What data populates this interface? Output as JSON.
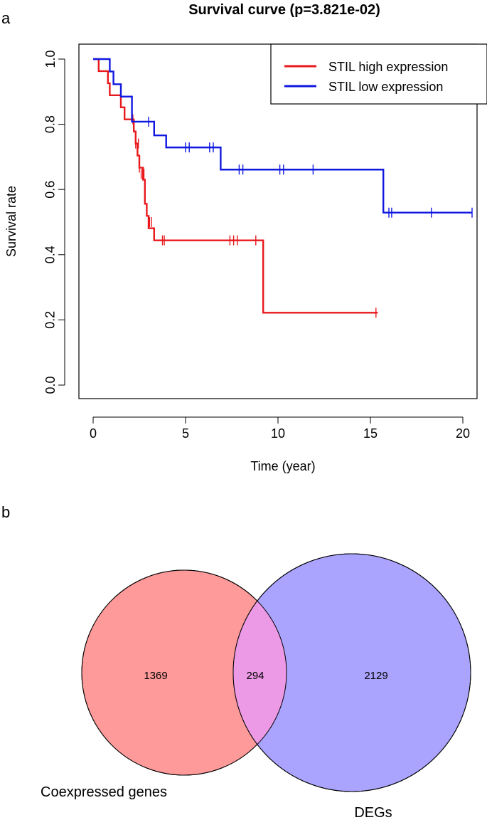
{
  "panel_a": {
    "label": "a"
  },
  "panel_b": {
    "label": "b"
  },
  "chart_data": [
    {
      "type": "line",
      "subtype": "kaplan-meier step",
      "title": "Survival curve (p=3.821e-02)",
      "xlabel": "Time (year)",
      "ylabel": "Survival rate",
      "xlim": [
        0,
        20.5
      ],
      "ylim": [
        0,
        1
      ],
      "xticks": [
        0,
        5,
        10,
        15,
        20
      ],
      "xtick_labels": [
        "0",
        "5",
        "10",
        "15",
        "20"
      ],
      "yticks": [
        0,
        0.2,
        0.4,
        0.6,
        0.8,
        1.0
      ],
      "ytick_labels": [
        "0.0",
        "0.2",
        "0.4",
        "0.6",
        "0.8",
        "1.0"
      ],
      "grid": false,
      "legend_position": "top-right",
      "series": [
        {
          "name": "STIL high expression",
          "color": "#e8191c",
          "steps": [
            [
              0,
              1.0
            ],
            [
              0.3,
              0.963
            ],
            [
              0.8,
              0.926
            ],
            [
              0.9,
              0.889
            ],
            [
              1.5,
              0.852
            ],
            [
              1.7,
              0.815
            ],
            [
              2.2,
              0.778
            ],
            [
              2.3,
              0.741
            ],
            [
              2.4,
              0.704
            ],
            [
              2.5,
              0.667
            ],
            [
              2.7,
              0.63
            ],
            [
              2.8,
              0.556
            ],
            [
              2.9,
              0.519
            ],
            [
              3.0,
              0.481
            ],
            [
              3.3,
              0.444
            ],
            [
              9.2,
              0.222
            ],
            [
              15.4,
              0.222
            ]
          ],
          "censored": [
            [
              2.15,
              0.815
            ],
            [
              2.3,
              0.741
            ],
            [
              2.45,
              0.741
            ],
            [
              2.5,
              0.667
            ],
            [
              2.6,
              0.648
            ],
            [
              2.75,
              0.648
            ],
            [
              3.05,
              0.5
            ],
            [
              3.15,
              0.5
            ],
            [
              3.75,
              0.444
            ],
            [
              3.85,
              0.444
            ],
            [
              7.4,
              0.444
            ],
            [
              7.6,
              0.444
            ],
            [
              7.8,
              0.444
            ],
            [
              8.8,
              0.444
            ],
            [
              15.3,
              0.222
            ]
          ]
        },
        {
          "name": "STIL low expression",
          "color": "#1018e0",
          "steps": [
            [
              0,
              1.0
            ],
            [
              0.9,
              0.962
            ],
            [
              1.1,
              0.923
            ],
            [
              1.5,
              0.885
            ],
            [
              2.1,
              0.808
            ],
            [
              3.3,
              0.766
            ],
            [
              3.95,
              0.729
            ],
            [
              6.9,
              0.661
            ],
            [
              15.7,
              0.529
            ],
            [
              20.5,
              0.529
            ]
          ],
          "censored": [
            [
              3.0,
              0.808
            ],
            [
              5.0,
              0.729
            ],
            [
              5.2,
              0.729
            ],
            [
              6.3,
              0.729
            ],
            [
              6.5,
              0.729
            ],
            [
              7.9,
              0.661
            ],
            [
              8.1,
              0.661
            ],
            [
              10.1,
              0.661
            ],
            [
              10.3,
              0.661
            ],
            [
              11.9,
              0.661
            ],
            [
              16.0,
              0.529
            ],
            [
              16.15,
              0.529
            ],
            [
              18.3,
              0.529
            ],
            [
              20.5,
              0.529
            ]
          ]
        }
      ]
    },
    {
      "type": "venn",
      "sets": [
        {
          "name": "Coexpressed genes",
          "only": "1369",
          "color": "#ff9a9a"
        },
        {
          "name": "DEGs",
          "only": "2129",
          "color": "#aaa4fe"
        }
      ],
      "intersection": {
        "value": "294",
        "color": "#ed9ae6"
      }
    }
  ]
}
